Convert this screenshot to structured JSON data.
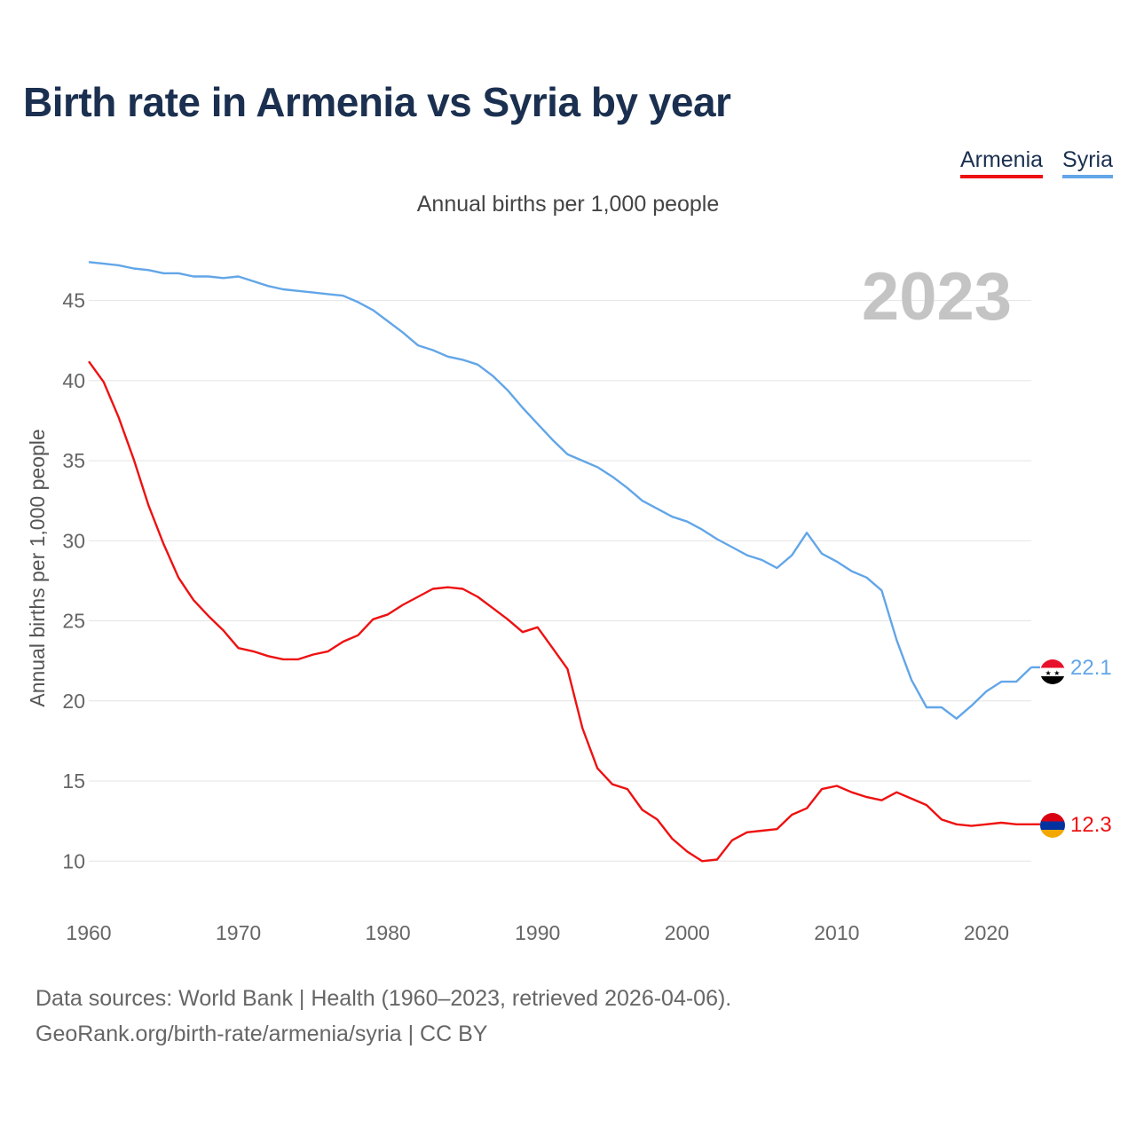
{
  "title": "Birth rate in Armenia vs Syria by year",
  "subtitle": "Annual births per 1,000 people",
  "legend": [
    {
      "name": "Armenia",
      "color": "#ee1111"
    },
    {
      "name": "Syria",
      "color": "#62a6e8"
    }
  ],
  "source": {
    "line1": "Data sources: World Bank | Health (1960–2023, retrieved 2026-04-06).",
    "line2": "GeoRank.org/birth-rate/armenia/syria | CC BY"
  },
  "chart_data": {
    "type": "line",
    "title": "Birth rate in Armenia vs Syria by year",
    "xlabel": "",
    "ylabel": "Annual births per 1,000 people",
    "year_display": "2023",
    "xlim": [
      1960,
      2023
    ],
    "ylim": [
      7.8,
      48.8
    ],
    "xticks": [
      1960,
      1970,
      1980,
      1990,
      2000,
      2010,
      2020
    ],
    "yticks": [
      10,
      15,
      20,
      25,
      30,
      35,
      40,
      45
    ],
    "grid": true,
    "x": [
      1960,
      1961,
      1962,
      1963,
      1964,
      1965,
      1966,
      1967,
      1968,
      1969,
      1970,
      1971,
      1972,
      1973,
      1974,
      1975,
      1976,
      1977,
      1978,
      1979,
      1980,
      1981,
      1982,
      1983,
      1984,
      1985,
      1986,
      1987,
      1988,
      1989,
      1990,
      1991,
      1992,
      1993,
      1994,
      1995,
      1996,
      1997,
      1998,
      1999,
      2000,
      2001,
      2002,
      2003,
      2004,
      2005,
      2006,
      2007,
      2008,
      2009,
      2010,
      2011,
      2012,
      2013,
      2014,
      2015,
      2016,
      2017,
      2018,
      2019,
      2020,
      2021,
      2022,
      2023
    ],
    "series": [
      {
        "name": "Syria",
        "color": "#62a6e8",
        "end_label": "22.1",
        "values": [
          47.4,
          47.3,
          47.2,
          47.0,
          46.9,
          46.7,
          46.7,
          46.5,
          46.5,
          46.4,
          46.5,
          46.2,
          45.9,
          45.7,
          45.6,
          45.5,
          45.4,
          45.3,
          44.9,
          44.4,
          43.7,
          43.0,
          42.2,
          41.9,
          41.5,
          41.3,
          41.0,
          40.3,
          39.4,
          38.3,
          37.3,
          36.3,
          35.4,
          35.0,
          34.6,
          34.0,
          33.3,
          32.5,
          32.0,
          31.5,
          31.2,
          30.7,
          30.1,
          29.6,
          29.1,
          28.8,
          28.3,
          29.1,
          30.5,
          29.2,
          28.7,
          28.1,
          27.7,
          26.9,
          23.8,
          21.3,
          19.6,
          19.6,
          18.9,
          19.7,
          20.6,
          21.2,
          21.2,
          22.1
        ]
      },
      {
        "name": "Armenia",
        "color": "#ee1111",
        "end_label": "12.3",
        "values": [
          41.2,
          39.9,
          37.7,
          35.1,
          32.2,
          29.8,
          27.7,
          26.3,
          25.3,
          24.4,
          23.3,
          23.1,
          22.8,
          22.6,
          22.6,
          22.9,
          23.1,
          23.7,
          24.1,
          25.1,
          25.4,
          26.0,
          26.5,
          27.0,
          27.1,
          27.0,
          26.5,
          25.8,
          25.1,
          24.3,
          24.6,
          23.3,
          22.0,
          18.3,
          15.8,
          14.8,
          14.5,
          13.2,
          12.6,
          11.4,
          10.6,
          10.0,
          10.1,
          11.3,
          11.8,
          11.9,
          12.0,
          12.9,
          13.3,
          14.5,
          14.7,
          14.3,
          14.0,
          13.8,
          14.3,
          13.9,
          13.5,
          12.6,
          12.3,
          12.2,
          12.3,
          12.4,
          12.3,
          12.3
        ]
      }
    ]
  }
}
